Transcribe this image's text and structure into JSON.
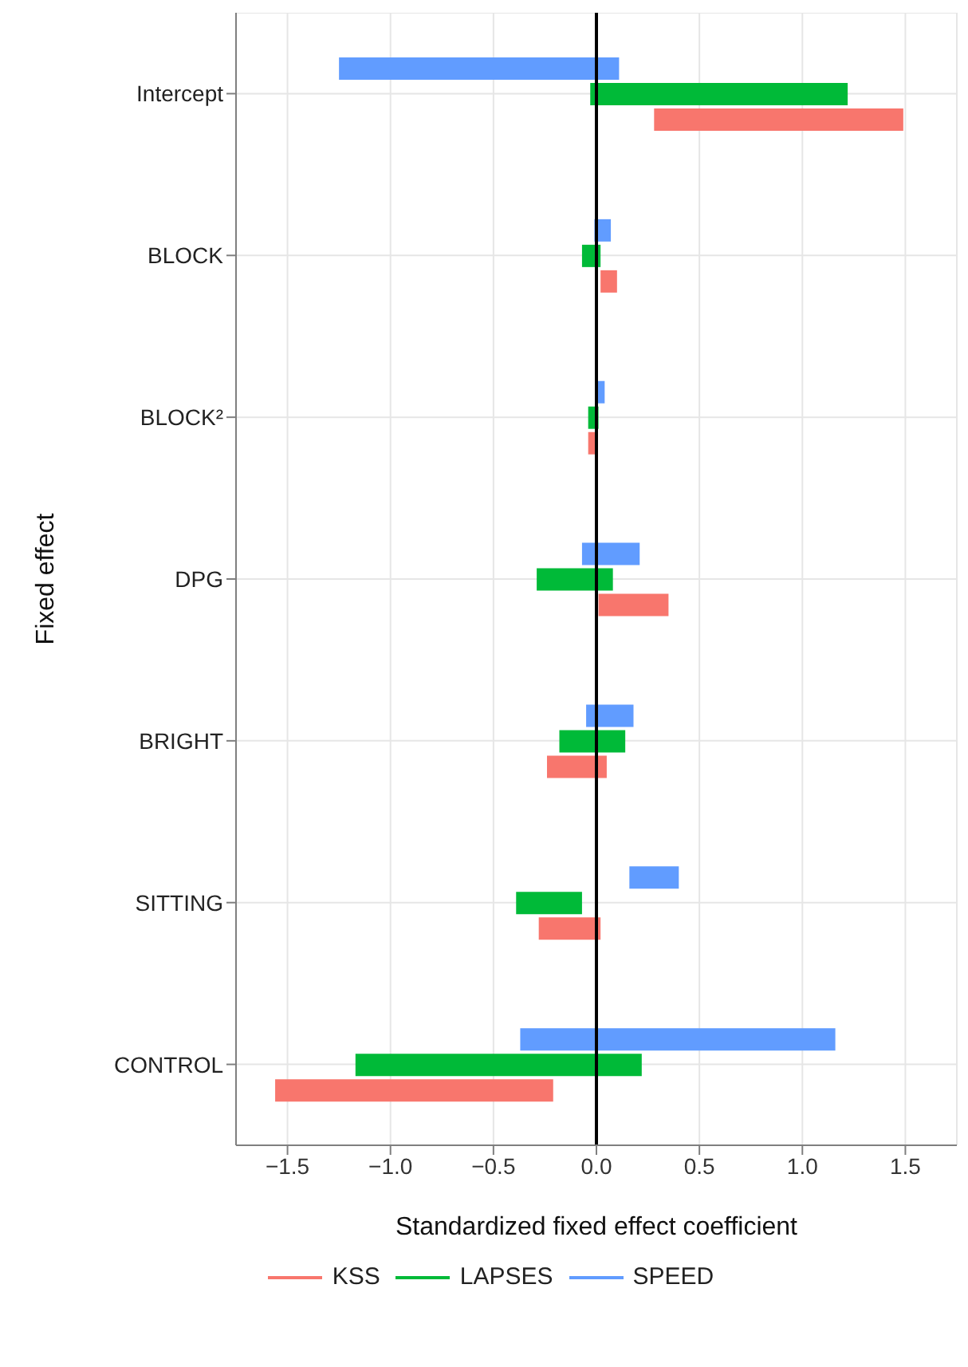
{
  "chart_data": {
    "type": "bar",
    "orientation": "horizontal",
    "xlabel": "Standardized fixed effect coefficient",
    "ylabel": "Fixed effect",
    "categories": [
      "Intercept",
      "BLOCK",
      "BLOCK²",
      "DPG",
      "BRIGHT",
      "SITTING",
      "CONTROL"
    ],
    "series": [
      {
        "name": "KSS",
        "color": "#f8766d",
        "base": [
          0.28,
          0.02,
          -0.04,
          0.01,
          -0.24,
          -0.28,
          -1.56
        ],
        "values": [
          1.21,
          0.08,
          0.04,
          0.34,
          0.29,
          0.3,
          1.35
        ]
      },
      {
        "name": "LAPSES",
        "color": "#00ba38",
        "base": [
          -0.03,
          -0.07,
          -0.04,
          -0.29,
          -0.18,
          -0.39,
          -1.17
        ],
        "values": [
          1.25,
          0.09,
          0.05,
          0.37,
          0.32,
          0.32,
          1.39
        ]
      },
      {
        "name": "SPEED",
        "color": "#619cff",
        "base": [
          -1.25,
          -0.01,
          0.0,
          -0.07,
          -0.05,
          0.16,
          -0.37
        ],
        "values": [
          1.36,
          0.08,
          0.04,
          0.28,
          0.23,
          0.24,
          1.53
        ]
      }
    ],
    "xlim": [
      -1.75,
      1.75
    ],
    "xticks": [
      {
        "value": -1.5,
        "label": "−1.5"
      },
      {
        "value": -1,
        "label": "−1.0"
      },
      {
        "value": -0.5,
        "label": "−0.5"
      },
      {
        "value": 0,
        "label": "0.0"
      },
      {
        "value": 0.5,
        "label": "0.5"
      },
      {
        "value": 1,
        "label": "1.0"
      },
      {
        "value": 1.5,
        "label": "1.5"
      }
    ],
    "ref_lines": [
      {
        "axis": "x",
        "value": 0,
        "color": "#000000"
      }
    ],
    "grid": true,
    "legend": "bottom"
  }
}
